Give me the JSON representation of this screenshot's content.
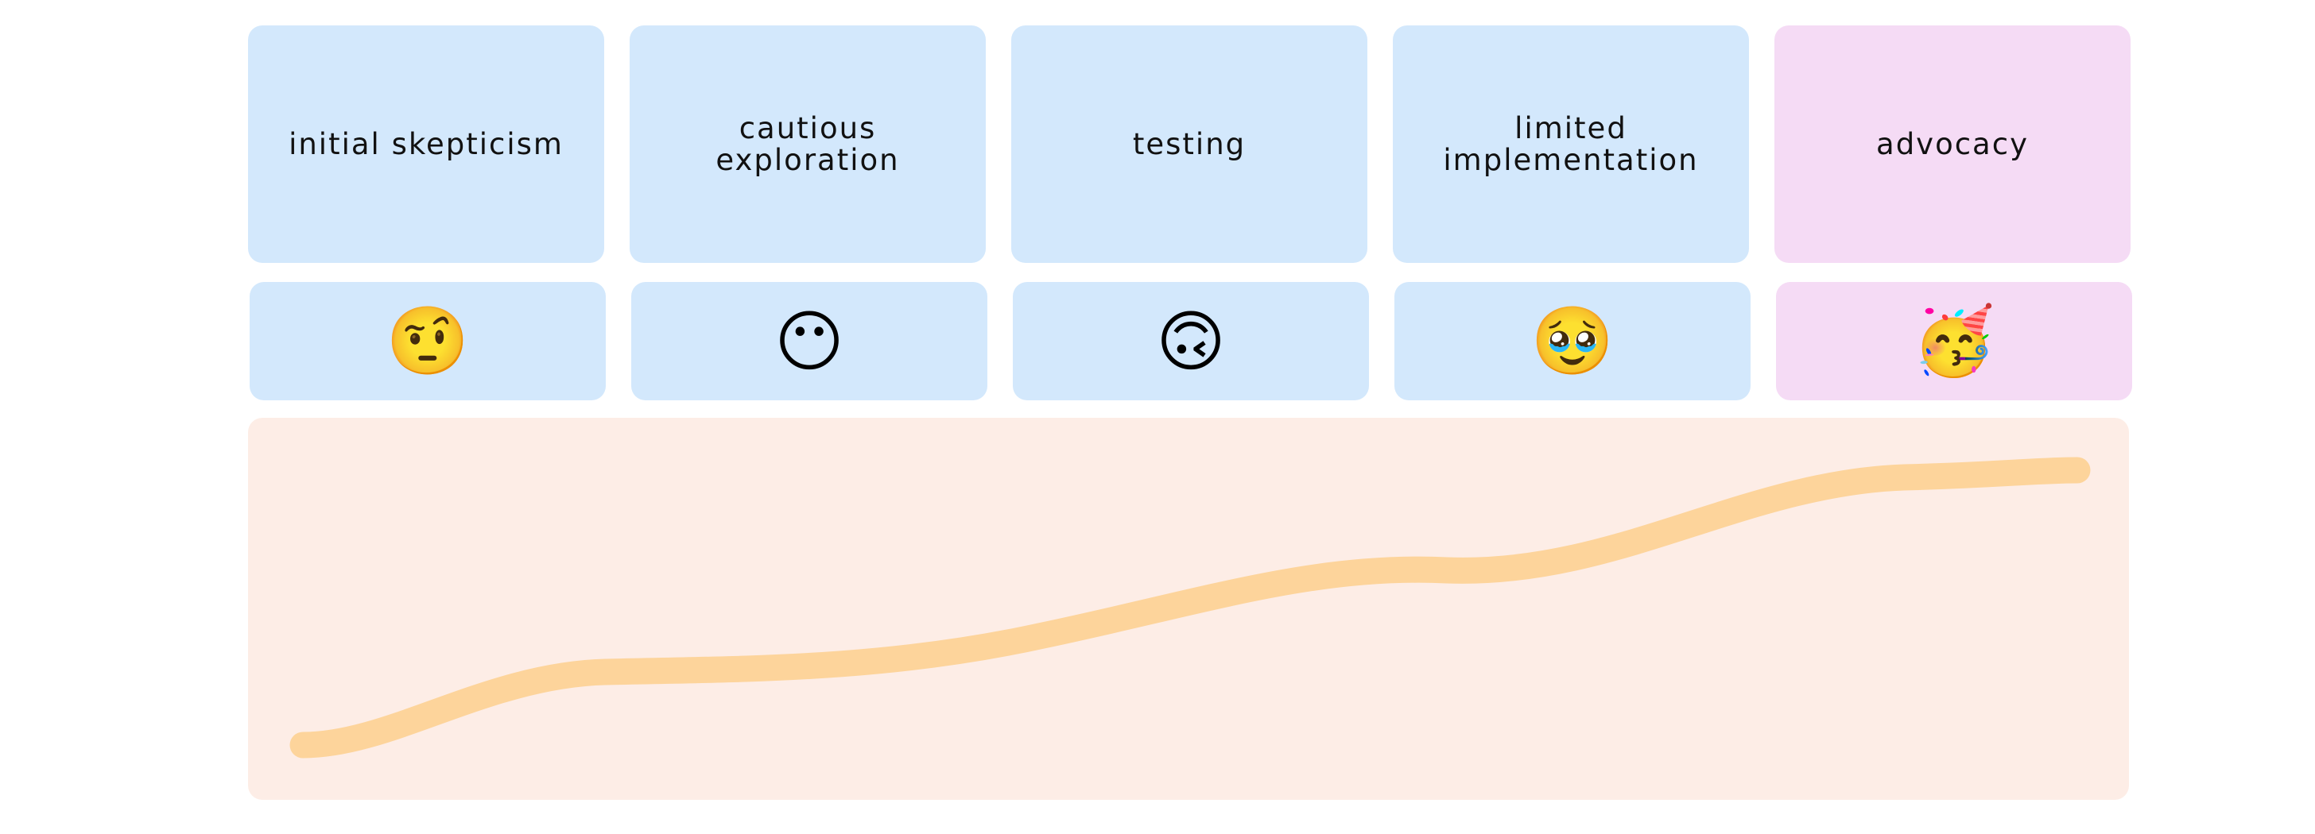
{
  "stages": [
    {
      "label": "initial skepticism",
      "emoji": "🤨",
      "emoji_name": "face-with-raised-eyebrow",
      "color": "#d3e8fc"
    },
    {
      "label": "cautious exploration",
      "emoji": "😶",
      "emoji_name": "face-without-mouth",
      "color": "#d3e8fc"
    },
    {
      "label": "testing",
      "emoji": "🙃",
      "emoji_name": "upside-down-face",
      "color": "#d3e8fc"
    },
    {
      "label": "limited implementation",
      "emoji": "🥹",
      "emoji_name": "face-holding-back-tears",
      "color": "#d3e8fc"
    },
    {
      "label": "advocacy",
      "emoji": "🥳",
      "emoji_name": "partying-face",
      "color": "#f5dbf5"
    }
  ],
  "journey": {
    "background": "#fdede6",
    "line_color": "#fdd49b",
    "trend": "rising"
  }
}
